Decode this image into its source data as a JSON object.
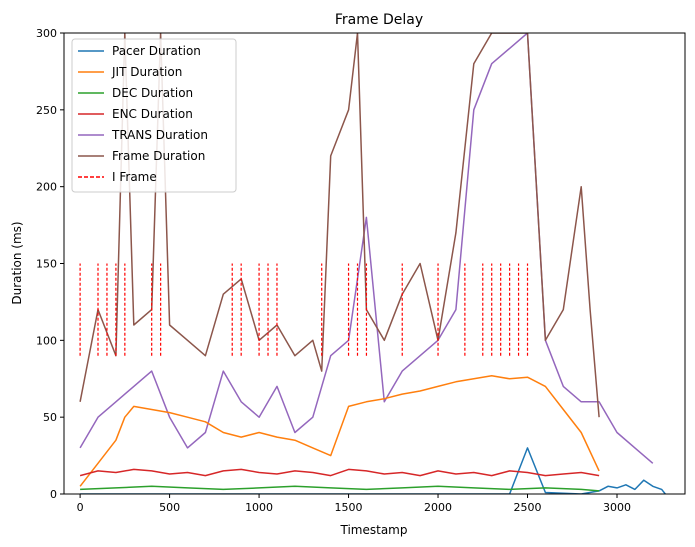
{
  "chart_data": {
    "type": "line",
    "title": "Frame Delay",
    "xlabel": "Timestamp",
    "ylabel": "Duration (ms)",
    "xlim": [
      -90,
      3380
    ],
    "ylim": [
      0,
      300
    ],
    "x_ticks": [
      0,
      500,
      1000,
      1500,
      2000,
      2500,
      3000
    ],
    "y_ticks": [
      0,
      50,
      100,
      150,
      200,
      250,
      300
    ],
    "legend_position": "top-left",
    "series": [
      {
        "name": "Pacer Duration",
        "color": "#1f77b4",
        "x": [
          0,
          500,
          1000,
          1500,
          2000,
          2400,
          2500,
          2600,
          2800,
          2900,
          2950,
          3000,
          3050,
          3100,
          3150,
          3200,
          3250,
          3270
        ],
        "y": [
          0,
          0,
          0,
          0,
          0,
          0,
          30,
          1,
          0,
          2,
          5,
          4,
          6,
          3,
          9,
          5,
          3,
          0
        ]
      },
      {
        "name": "JIT Duration",
        "color": "#ff7f0e",
        "x": [
          0,
          100,
          200,
          250,
          300,
          400,
          500,
          600,
          700,
          800,
          900,
          1000,
          1100,
          1200,
          1300,
          1400,
          1500,
          1600,
          1700,
          1800,
          1900,
          2000,
          2100,
          2200,
          2300,
          2400,
          2500,
          2600,
          2700,
          2800,
          2900
        ],
        "y": [
          5,
          20,
          35,
          50,
          57,
          55,
          53,
          50,
          47,
          40,
          37,
          40,
          37,
          35,
          30,
          25,
          57,
          60,
          62,
          65,
          67,
          70,
          73,
          75,
          77,
          75,
          76,
          70,
          55,
          40,
          15
        ]
      },
      {
        "name": "DEC Duration",
        "color": "#2ca02c",
        "x": [
          0,
          200,
          400,
          600,
          800,
          1000,
          1200,
          1400,
          1600,
          1800,
          2000,
          2200,
          2400,
          2600,
          2800,
          2900
        ],
        "y": [
          3,
          4,
          5,
          4,
          3,
          4,
          5,
          4,
          3,
          4,
          5,
          4,
          3,
          4,
          3,
          2
        ]
      },
      {
        "name": "ENC Duration",
        "color": "#d62728",
        "x": [
          0,
          100,
          200,
          300,
          400,
          500,
          600,
          700,
          800,
          900,
          1000,
          1100,
          1200,
          1300,
          1400,
          1500,
          1600,
          1700,
          1800,
          1900,
          2000,
          2100,
          2200,
          2300,
          2400,
          2500,
          2600,
          2700,
          2800,
          2900
        ],
        "y": [
          12,
          15,
          14,
          16,
          15,
          13,
          14,
          12,
          15,
          16,
          14,
          13,
          15,
          14,
          12,
          16,
          15,
          13,
          14,
          12,
          15,
          13,
          14,
          12,
          15,
          14,
          12,
          13,
          14,
          12
        ]
      },
      {
        "name": "TRANS Duration",
        "color": "#9467bd",
        "x": [
          0,
          100,
          200,
          300,
          400,
          500,
          600,
          700,
          800,
          900,
          1000,
          1100,
          1200,
          1300,
          1400,
          1500,
          1600,
          1700,
          1800,
          1900,
          2000,
          2100,
          2200,
          2300,
          2400,
          2500,
          2600,
          2700,
          2800,
          2900,
          3000,
          3100,
          3200
        ],
        "y": [
          30,
          50,
          60,
          70,
          80,
          50,
          30,
          40,
          80,
          60,
          50,
          70,
          40,
          50,
          90,
          100,
          180,
          60,
          80,
          90,
          100,
          120,
          250,
          280,
          290,
          300,
          100,
          70,
          60,
          60,
          40,
          30,
          20
        ]
      },
      {
        "name": "Frame Duration",
        "color": "#8c564b",
        "x": [
          0,
          100,
          200,
          250,
          300,
          400,
          450,
          500,
          600,
          700,
          800,
          900,
          1000,
          1100,
          1200,
          1300,
          1350,
          1400,
          1500,
          1550,
          1600,
          1700,
          1800,
          1900,
          2000,
          2100,
          2200,
          2300,
          2400,
          2500,
          2600,
          2700,
          2800,
          2850,
          2900
        ],
        "y": [
          60,
          120,
          90,
          300,
          110,
          120,
          300,
          110,
          100,
          90,
          130,
          140,
          100,
          110,
          90,
          100,
          80,
          220,
          250,
          300,
          120,
          100,
          130,
          150,
          100,
          170,
          280,
          300,
          300,
          300,
          100,
          120,
          200,
          120,
          50
        ]
      },
      {
        "name": "I Frame",
        "color": "#ff0000",
        "style": "dashed",
        "x": [
          0,
          100,
          150,
          200,
          250,
          400,
          450,
          850,
          900,
          1000,
          1050,
          1100,
          1350,
          1500,
          1550,
          1600,
          1800,
          2000,
          2150,
          2250,
          2300,
          2350,
          2400,
          2450,
          2500
        ],
        "y": [
          150,
          150,
          150,
          150,
          150,
          150,
          150,
          150,
          150,
          150,
          150,
          150,
          150,
          150,
          150,
          150,
          150,
          150,
          150,
          150,
          150,
          150,
          150,
          150,
          150
        ]
      }
    ]
  }
}
